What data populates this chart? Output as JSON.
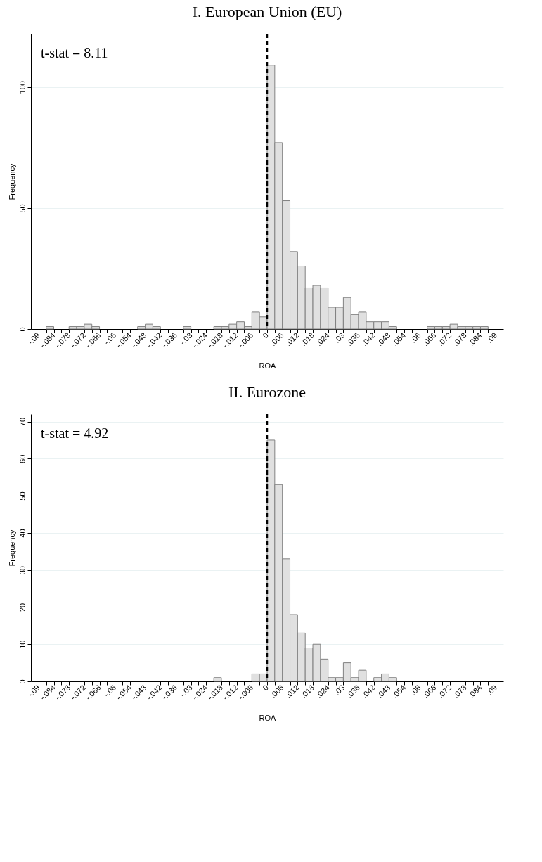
{
  "chart_data": [
    {
      "type": "histogram",
      "title": "I. European Union (EU)",
      "xlabel": "ROA",
      "ylabel": "Frequency",
      "color": "#e0e0e0",
      "bins": [
        -0.09,
        -0.087,
        -0.084,
        -0.081,
        -0.078,
        -0.075,
        -0.072,
        -0.069,
        -0.066,
        -0.063,
        -0.06,
        -0.057,
        -0.054,
        -0.051,
        -0.048,
        -0.045,
        -0.042,
        -0.039,
        -0.036,
        -0.033,
        -0.03,
        -0.027,
        -0.024,
        -0.021,
        -0.018,
        -0.015,
        -0.012,
        -0.009,
        -0.006,
        -0.003,
        0,
        0.003,
        0.006,
        0.009,
        0.012,
        0.015,
        0.018,
        0.021,
        0.024,
        0.027,
        0.03,
        0.033,
        0.036,
        0.039,
        0.042,
        0.045,
        0.048,
        0.051,
        0.054,
        0.057,
        0.06,
        0.063,
        0.066,
        0.069,
        0.072,
        0.075,
        0.078,
        0.081,
        0.084,
        0.087,
        0.09
      ],
      "values": [
        0,
        1,
        0,
        0,
        1,
        1,
        2,
        1,
        0,
        0,
        0,
        0,
        0,
        1,
        2,
        1,
        0,
        0,
        0,
        1,
        0,
        0,
        0,
        1,
        1,
        2,
        3,
        1,
        7,
        5,
        109,
        77,
        53,
        32,
        26,
        17,
        18,
        17,
        9,
        9,
        13,
        6,
        7,
        3,
        3,
        3,
        1,
        0,
        0,
        0,
        0,
        1,
        1,
        1,
        2,
        1,
        1,
        1,
        1,
        0
      ],
      "xlim": [
        -0.093,
        0.093
      ],
      "ylim": [
        0,
        122
      ],
      "yticks": [
        0,
        50,
        100
      ],
      "xticks": [
        {
          "value": -0.09,
          "label": "-.09"
        },
        {
          "value": -0.087,
          "label": null
        },
        {
          "value": -0.084,
          "label": "-.084"
        },
        {
          "value": -0.081,
          "label": null
        },
        {
          "value": -0.078,
          "label": "-.078"
        },
        {
          "value": -0.075,
          "label": null
        },
        {
          "value": -0.072,
          "label": "-.072"
        },
        {
          "value": -0.069,
          "label": null
        },
        {
          "value": -0.066,
          "label": "-.066"
        },
        {
          "value": -0.063,
          "label": null
        },
        {
          "value": -0.06,
          "label": "-.06"
        },
        {
          "value": -0.057,
          "label": null
        },
        {
          "value": -0.054,
          "label": "-.054"
        },
        {
          "value": -0.051,
          "label": null
        },
        {
          "value": -0.048,
          "label": "-.048"
        },
        {
          "value": -0.045,
          "label": null
        },
        {
          "value": -0.042,
          "label": "-.042"
        },
        {
          "value": -0.039,
          "label": null
        },
        {
          "value": -0.036,
          "label": "-.036"
        },
        {
          "value": -0.033,
          "label": null
        },
        {
          "value": -0.03,
          "label": "-.03"
        },
        {
          "value": -0.027,
          "label": null
        },
        {
          "value": -0.024,
          "label": "-.024"
        },
        {
          "value": -0.021,
          "label": null
        },
        {
          "value": -0.018,
          "label": "-.018"
        },
        {
          "value": -0.015,
          "label": null
        },
        {
          "value": -0.012,
          "label": "-.012"
        },
        {
          "value": -0.009,
          "label": null
        },
        {
          "value": -0.006,
          "label": "-.006"
        },
        {
          "value": -0.003,
          "label": null
        },
        0,
        {
          "value": 0.003,
          "label": null
        },
        {
          "value": 0.006,
          "label": ".006"
        },
        {
          "value": 0.009,
          "label": null
        },
        {
          "value": 0.012,
          "label": ".012"
        },
        {
          "value": 0.015,
          "label": null
        },
        {
          "value": 0.018,
          "label": ".018"
        },
        {
          "value": 0.021,
          "label": null
        },
        {
          "value": 0.024,
          "label": ".024"
        },
        {
          "value": 0.027,
          "label": null
        },
        {
          "value": 0.03,
          "label": ".03"
        },
        {
          "value": 0.033,
          "label": null
        },
        {
          "value": 0.036,
          "label": ".036"
        },
        {
          "value": 0.039,
          "label": null
        },
        {
          "value": 0.042,
          "label": ".042"
        },
        {
          "value": 0.045,
          "label": null
        },
        {
          "value": 0.048,
          "label": ".048"
        },
        {
          "value": 0.051,
          "label": null
        },
        {
          "value": 0.054,
          "label": ".054"
        },
        {
          "value": 0.057,
          "label": null
        },
        {
          "value": 0.06,
          "label": ".06"
        },
        {
          "value": 0.063,
          "label": null
        },
        {
          "value": 0.066,
          "label": ".066"
        },
        {
          "value": 0.069,
          "label": null
        },
        {
          "value": 0.072,
          "label": ".072"
        },
        {
          "value": 0.075,
          "label": null
        },
        {
          "value": 0.078,
          "label": ".078"
        },
        {
          "value": 0.081,
          "label": null
        },
        {
          "value": 0.084,
          "label": ".084"
        },
        {
          "value": 0.087,
          "label": null
        },
        {
          "value": 0.09,
          "label": ".09"
        }
      ],
      "ref_lines": [
        {
          "axis": "x",
          "value": 0,
          "line_style": "dashed",
          "color": "#000000"
        }
      ],
      "annotations": [
        "t-stat = 8.11"
      ],
      "grid": "y"
    },
    {
      "type": "histogram",
      "title": "II. Eurozone",
      "xlabel": "ROA",
      "ylabel": "Frequency",
      "color": "#e0e0e0",
      "bins": [
        -0.09,
        -0.087,
        -0.084,
        -0.081,
        -0.078,
        -0.075,
        -0.072,
        -0.069,
        -0.066,
        -0.063,
        -0.06,
        -0.057,
        -0.054,
        -0.051,
        -0.048,
        -0.045,
        -0.042,
        -0.039,
        -0.036,
        -0.033,
        -0.03,
        -0.027,
        -0.024,
        -0.021,
        -0.018,
        -0.015,
        -0.012,
        -0.009,
        -0.006,
        -0.003,
        0,
        0.003,
        0.006,
        0.009,
        0.012,
        0.015,
        0.018,
        0.021,
        0.024,
        0.027,
        0.03,
        0.033,
        0.036,
        0.039,
        0.042,
        0.045,
        0.048,
        0.051,
        0.054,
        0.057,
        0.06,
        0.063,
        0.066,
        0.069,
        0.072,
        0.075,
        0.078,
        0.081,
        0.084,
        0.087,
        0.09
      ],
      "values": [
        0,
        0,
        0,
        0,
        0,
        0,
        0,
        0,
        0,
        0,
        0,
        0,
        0,
        0,
        0,
        0,
        0,
        0,
        0,
        0,
        0,
        0,
        0,
        1,
        0,
        0,
        0,
        0,
        2,
        2,
        65,
        53,
        33,
        18,
        13,
        9,
        10,
        6,
        1,
        1,
        5,
        1,
        3,
        0,
        1,
        2,
        1,
        0,
        0,
        0,
        0,
        0,
        0,
        0,
        0,
        0,
        0,
        0,
        0,
        0
      ],
      "xlim": [
        -0.093,
        0.093
      ],
      "ylim": [
        0,
        72
      ],
      "yticks": [
        0,
        10,
        20,
        30,
        40,
        50,
        60,
        70
      ],
      "xticks": [
        {
          "value": -0.09,
          "label": "-.09"
        },
        {
          "value": -0.087,
          "label": null
        },
        {
          "value": -0.084,
          "label": "-.084"
        },
        {
          "value": -0.081,
          "label": null
        },
        {
          "value": -0.078,
          "label": "-.078"
        },
        {
          "value": -0.075,
          "label": null
        },
        {
          "value": -0.072,
          "label": "-.072"
        },
        {
          "value": -0.069,
          "label": null
        },
        {
          "value": -0.066,
          "label": "-.066"
        },
        {
          "value": -0.063,
          "label": null
        },
        {
          "value": -0.06,
          "label": "-.06"
        },
        {
          "value": -0.057,
          "label": null
        },
        {
          "value": -0.054,
          "label": "-.054"
        },
        {
          "value": -0.051,
          "label": null
        },
        {
          "value": -0.048,
          "label": "-.048"
        },
        {
          "value": -0.045,
          "label": null
        },
        {
          "value": -0.042,
          "label": "-.042"
        },
        {
          "value": -0.039,
          "label": null
        },
        {
          "value": -0.036,
          "label": "-.036"
        },
        {
          "value": -0.033,
          "label": null
        },
        {
          "value": -0.03,
          "label": "-.03"
        },
        {
          "value": -0.027,
          "label": null
        },
        {
          "value": -0.024,
          "label": "-.024"
        },
        {
          "value": -0.021,
          "label": null
        },
        {
          "value": -0.018,
          "label": "-.018"
        },
        {
          "value": -0.015,
          "label": null
        },
        {
          "value": -0.012,
          "label": "-.012"
        },
        {
          "value": -0.009,
          "label": null
        },
        {
          "value": -0.006,
          "label": "-.006"
        },
        {
          "value": -0.003,
          "label": null
        },
        0,
        {
          "value": 0.003,
          "label": null
        },
        {
          "value": 0.006,
          "label": ".006"
        },
        {
          "value": 0.009,
          "label": null
        },
        {
          "value": 0.012,
          "label": ".012"
        },
        {
          "value": 0.015,
          "label": null
        },
        {
          "value": 0.018,
          "label": ".018"
        },
        {
          "value": 0.021,
          "label": null
        },
        {
          "value": 0.024,
          "label": ".024"
        },
        {
          "value": 0.027,
          "label": null
        },
        {
          "value": 0.03,
          "label": ".03"
        },
        {
          "value": 0.033,
          "label": null
        },
        {
          "value": 0.036,
          "label": ".036"
        },
        {
          "value": 0.039,
          "label": null
        },
        {
          "value": 0.042,
          "label": ".042"
        },
        {
          "value": 0.045,
          "label": null
        },
        {
          "value": 0.048,
          "label": ".048"
        },
        {
          "value": 0.051,
          "label": null
        },
        {
          "value": 0.054,
          "label": ".054"
        },
        {
          "value": 0.057,
          "label": null
        },
        {
          "value": 0.06,
          "label": ".06"
        },
        {
          "value": 0.063,
          "label": null
        },
        {
          "value": 0.066,
          "label": ".066"
        },
        {
          "value": 0.069,
          "label": null
        },
        {
          "value": 0.072,
          "label": ".072"
        },
        {
          "value": 0.075,
          "label": null
        },
        {
          "value": 0.078,
          "label": ".078"
        },
        {
          "value": 0.081,
          "label": null
        },
        {
          "value": 0.084,
          "label": ".084"
        },
        {
          "value": 0.087,
          "label": null
        },
        {
          "value": 0.09,
          "label": ".09"
        }
      ],
      "ref_lines": [
        {
          "axis": "x",
          "value": 0,
          "line_style": "dashed",
          "color": "#000000"
        }
      ],
      "annotations": [
        "t-stat = 4.92"
      ],
      "grid": "y"
    }
  ]
}
